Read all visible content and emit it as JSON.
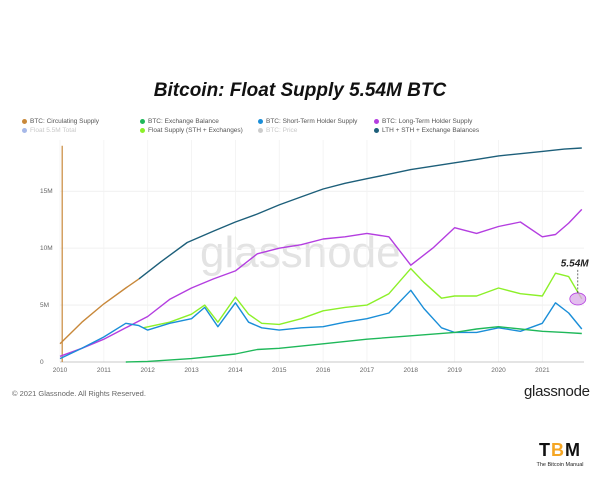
{
  "title": "Bitcoin: Float Supply 5.54M BTC",
  "watermark": "glassnode",
  "footer": {
    "copyright": "© 2021 Glassnode. All Rights Reserved.",
    "brand": "glassnode"
  },
  "tbm": {
    "logo_left": "T",
    "logo_mid": "B",
    "logo_right": "M",
    "subtitle": "The Bitcoin Manual"
  },
  "legend": [
    {
      "label": "BTC: Circulating Supply",
      "color": "#c8883a",
      "faded": false
    },
    {
      "label": "BTC: Exchange Balance",
      "color": "#1fb85a",
      "faded": false
    },
    {
      "label": "BTC: Short-Term Holder Supply",
      "color": "#1a8ed8",
      "faded": false
    },
    {
      "label": "BTC: Long-Term Holder Supply",
      "color": "#b43ee0",
      "faded": false
    },
    {
      "label": "Float 5.5M Total",
      "color": "#a6b8e8",
      "faded": true
    },
    {
      "label": "Float Supply (STH + Exchanges)",
      "color": "#8cf029",
      "faded": false
    },
    {
      "label": "BTC: Price",
      "color": "#cccccc",
      "faded": true
    },
    {
      "label": "LTH + STH + Exchange Balances",
      "color": "#1d5f7a",
      "faded": false
    }
  ],
  "annotation": {
    "label": "5.54M",
    "value": 5.54,
    "x": 2021.9
  },
  "chart_data": {
    "type": "line",
    "title": "Bitcoin: Float Supply 5.54M BTC",
    "xlabel": "",
    "ylabel": "",
    "xlim": [
      2010,
      2021.95
    ],
    "ylim": [
      0,
      19.5
    ],
    "x_ticks": [
      "2010",
      "2011",
      "2012",
      "2013",
      "2014",
      "2015",
      "2016",
      "2017",
      "2018",
      "2019",
      "2020",
      "2021"
    ],
    "y_ticks": [
      {
        "value": 0,
        "label": "0"
      },
      {
        "value": 5,
        "label": "5M"
      },
      {
        "value": 10,
        "label": "10M"
      },
      {
        "value": 15,
        "label": "15M"
      }
    ],
    "grid": true,
    "legend_position": "top",
    "series": [
      {
        "name": "BTC: Circulating Supply",
        "color": "#c8883a",
        "x": [
          2010.0,
          2010.5,
          2011.0,
          2011.5,
          2011.8
        ],
        "values": [
          1.6,
          3.5,
          5.1,
          6.5,
          7.3
        ]
      },
      {
        "name": "LTH + STH + Exchange Balances",
        "color": "#1d5f7a",
        "x": [
          2011.8,
          2012.3,
          2012.9,
          2013.5,
          2014.0,
          2014.5,
          2015.0,
          2015.5,
          2016.0,
          2016.5,
          2017.0,
          2017.5,
          2018.0,
          2018.5,
          2019.0,
          2019.5,
          2020.0,
          2020.5,
          2021.0,
          2021.5,
          2021.9
        ],
        "values": [
          7.3,
          8.8,
          10.5,
          11.5,
          12.3,
          13.0,
          13.8,
          14.5,
          15.2,
          15.7,
          16.1,
          16.5,
          16.9,
          17.2,
          17.5,
          17.8,
          18.1,
          18.3,
          18.5,
          18.7,
          18.8
        ]
      },
      {
        "name": "BTC: Long-Term Holder Supply",
        "color": "#b43ee0",
        "x": [
          2010.0,
          2010.5,
          2011.0,
          2011.5,
          2012.0,
          2012.5,
          2013.0,
          2013.5,
          2014.0,
          2014.5,
          2015.0,
          2015.5,
          2016.0,
          2016.5,
          2017.0,
          2017.5,
          2018.0,
          2018.5,
          2019.0,
          2019.5,
          2020.0,
          2020.5,
          2021.0,
          2021.3,
          2021.6,
          2021.9
        ],
        "values": [
          0.5,
          1.2,
          2.0,
          3.0,
          4.0,
          5.5,
          6.5,
          7.3,
          8.0,
          9.5,
          10.0,
          10.3,
          10.8,
          11.0,
          11.3,
          11.0,
          8.5,
          10.0,
          11.8,
          11.3,
          11.9,
          12.3,
          11.0,
          11.2,
          12.2,
          13.4
        ]
      },
      {
        "name": "Float Supply (STH + Exchanges)",
        "color": "#8cf029",
        "x": [
          2011.9,
          2012.5,
          2013.0,
          2013.3,
          2013.6,
          2014.0,
          2014.3,
          2014.6,
          2015.0,
          2015.5,
          2016.0,
          2016.5,
          2017.0,
          2017.5,
          2018.0,
          2018.3,
          2018.7,
          2019.0,
          2019.5,
          2020.0,
          2020.5,
          2021.0,
          2021.3,
          2021.6,
          2021.9
        ],
        "values": [
          3.0,
          3.5,
          4.2,
          5.0,
          3.5,
          5.7,
          4.2,
          3.4,
          3.3,
          3.8,
          4.5,
          4.8,
          5.0,
          6.0,
          8.2,
          7.0,
          5.6,
          5.8,
          5.8,
          6.5,
          6.0,
          5.8,
          7.8,
          7.5,
          5.54
        ]
      },
      {
        "name": "BTC: Short-Term Holder Supply",
        "color": "#1a8ed8",
        "x": [
          2010.0,
          2010.5,
          2011.0,
          2011.5,
          2011.8,
          2012.0,
          2012.5,
          2013.0,
          2013.3,
          2013.6,
          2014.0,
          2014.3,
          2014.6,
          2015.0,
          2015.5,
          2016.0,
          2016.5,
          2017.0,
          2017.5,
          2018.0,
          2018.3,
          2018.7,
          2019.0,
          2019.5,
          2020.0,
          2020.5,
          2021.0,
          2021.3,
          2021.6,
          2021.9
        ],
        "values": [
          0.3,
          1.2,
          2.2,
          3.4,
          3.2,
          2.8,
          3.4,
          3.8,
          4.8,
          3.1,
          5.2,
          3.5,
          3.0,
          2.8,
          3.0,
          3.1,
          3.5,
          3.8,
          4.3,
          6.3,
          4.7,
          3.0,
          2.6,
          2.6,
          3.0,
          2.7,
          3.4,
          5.2,
          4.3,
          2.9
        ]
      },
      {
        "name": "BTC: Exchange Balance",
        "color": "#1fb85a",
        "x": [
          2011.5,
          2012.0,
          2013.0,
          2014.0,
          2014.5,
          2015.0,
          2016.0,
          2017.0,
          2018.0,
          2019.0,
          2019.5,
          2020.0,
          2020.5,
          2021.0,
          2021.5,
          2021.9
        ],
        "values": [
          0.0,
          0.05,
          0.3,
          0.7,
          1.1,
          1.2,
          1.6,
          2.0,
          2.3,
          2.6,
          2.9,
          3.1,
          2.9,
          2.7,
          2.6,
          2.5
        ]
      }
    ]
  }
}
